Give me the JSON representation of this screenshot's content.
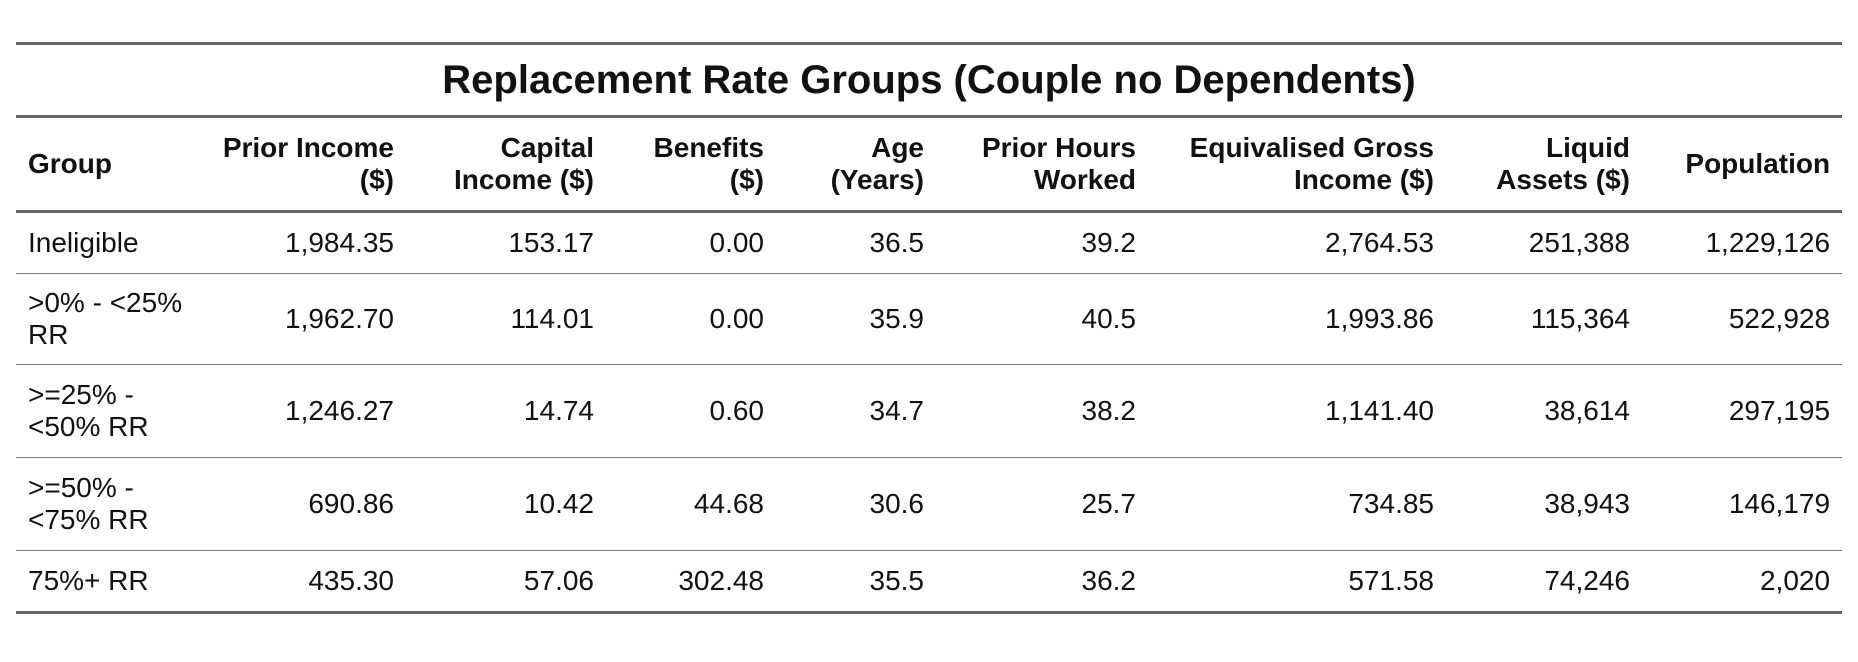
{
  "table": {
    "title": "Replacement Rate Groups (Couple no Dependents)",
    "columns": [
      {
        "label": "Group",
        "align": "left"
      },
      {
        "label": "Prior Income ($)",
        "align": "right"
      },
      {
        "label": "Capital Income ($)",
        "align": "right"
      },
      {
        "label": "Benefits ($)",
        "align": "right"
      },
      {
        "label": "Age (Years)",
        "align": "right"
      },
      {
        "label": "Prior Hours Worked",
        "align": "right"
      },
      {
        "label": "Equivalised Gross Income ($)",
        "align": "right"
      },
      {
        "label": "Liquid Assets ($)",
        "align": "right"
      },
      {
        "label": "Population",
        "align": "right"
      }
    ],
    "rows": [
      [
        "Ineligible",
        "1,984.35",
        "153.17",
        "0.00",
        "36.5",
        "39.2",
        "2,764.53",
        "251,388",
        "1,229,126"
      ],
      [
        ">0% - <25% RR",
        "1,962.70",
        "114.01",
        "0.00",
        "35.9",
        "40.5",
        "1,993.86",
        "115,364",
        "522,928"
      ],
      [
        ">=25% - <50% RR",
        "1,246.27",
        "14.74",
        "0.60",
        "34.7",
        "38.2",
        "1,141.40",
        "38,614",
        "297,195"
      ],
      [
        ">=50% - <75% RR",
        "690.86",
        "10.42",
        "44.68",
        "30.6",
        "25.7",
        "734.85",
        "38,943",
        "146,179"
      ],
      [
        "75%+ RR",
        "435.30",
        "57.06",
        "302.48",
        "35.5",
        "36.2",
        "571.58",
        "74,246",
        "2,020"
      ]
    ]
  }
}
